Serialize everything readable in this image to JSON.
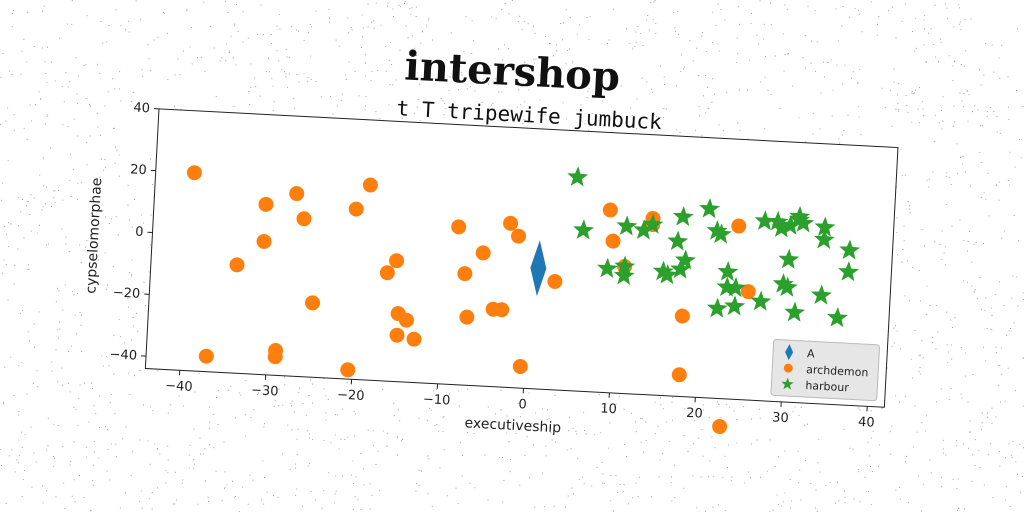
{
  "chart_data": {
    "type": "scatter",
    "title": "intershop",
    "subtitle": "t T tripewife jumbuck",
    "xlabel": "executiveship",
    "ylabel": "cypselomorphae",
    "xlim": [
      -44,
      42
    ],
    "ylim": [
      -44,
      40
    ],
    "xticks": [
      -40,
      -30,
      -20,
      -10,
      0,
      10,
      20,
      30,
      40
    ],
    "yticks": [
      -40,
      -20,
      0,
      20,
      40
    ],
    "grid": false,
    "legend_position": "bottom-right",
    "series": [
      {
        "name": "A",
        "marker": "diamond",
        "color": "#1f77b4",
        "points": [
          [
            1,
            -5
          ]
        ]
      },
      {
        "name": "archdemon",
        "marker": "circle",
        "color": "#ff7f0e",
        "points": [
          [
            -39.5,
            20
          ],
          [
            -31,
            11
          ],
          [
            -27.5,
            15
          ],
          [
            -26.5,
            7
          ],
          [
            -31,
            -1
          ],
          [
            -34,
            -9
          ],
          [
            -37,
            -39
          ],
          [
            -29,
            -36
          ],
          [
            -29,
            -38
          ],
          [
            -25,
            -20
          ],
          [
            -20.5,
            11
          ],
          [
            -19,
            19
          ],
          [
            -20.5,
            -41
          ],
          [
            -16.5,
            -9
          ],
          [
            -15.5,
            -5
          ],
          [
            -15,
            -22
          ],
          [
            -14,
            -24
          ],
          [
            -15,
            -29
          ],
          [
            -13,
            -30
          ],
          [
            -8.5,
            7
          ],
          [
            -7.5,
            -8
          ],
          [
            -7,
            -22
          ],
          [
            -5.5,
            -1
          ],
          [
            -4,
            -19
          ],
          [
            -3,
            -19
          ],
          [
            -2.5,
            9
          ],
          [
            -1.5,
            5
          ],
          [
            -0.5,
            -37
          ],
          [
            3,
            -9
          ],
          [
            9,
            15
          ],
          [
            9.5,
            5
          ],
          [
            11,
            -3
          ],
          [
            14,
            13
          ],
          [
            14,
            11
          ],
          [
            18,
            -18
          ],
          [
            18,
            -37
          ],
          [
            24,
            12
          ],
          [
            25.5,
            -9
          ],
          [
            23,
            -53
          ]
        ]
      },
      {
        "name": "harbour",
        "marker": "star",
        "color": "#2ca02c",
        "points": [
          [
            5,
            25
          ],
          [
            6,
            8
          ],
          [
            9,
            -4
          ],
          [
            11,
            10
          ],
          [
            11,
            -3
          ],
          [
            11,
            -6
          ],
          [
            13,
            9
          ],
          [
            14,
            11
          ],
          [
            15.5,
            -4
          ],
          [
            16,
            -5
          ],
          [
            17,
            6
          ],
          [
            17.5,
            14
          ],
          [
            17.5,
            -3
          ],
          [
            18,
            0
          ],
          [
            20.5,
            17
          ],
          [
            21.5,
            10
          ],
          [
            22,
            9
          ],
          [
            22,
            -15
          ],
          [
            23,
            -3
          ],
          [
            23,
            -8
          ],
          [
            24,
            -8
          ],
          [
            24,
            -14
          ],
          [
            27,
            14
          ],
          [
            27,
            -12
          ],
          [
            28.5,
            14
          ],
          [
            29,
            12
          ],
          [
            29.5,
            -6
          ],
          [
            30,
            13
          ],
          [
            30,
            2
          ],
          [
            30,
            -7
          ],
          [
            31,
            15
          ],
          [
            31,
            16
          ],
          [
            31,
            -15
          ],
          [
            31.5,
            14
          ],
          [
            34,
            13
          ],
          [
            34,
            9
          ],
          [
            34,
            -9
          ],
          [
            36,
            -16
          ],
          [
            37,
            6
          ],
          [
            37,
            -1
          ]
        ]
      }
    ]
  }
}
